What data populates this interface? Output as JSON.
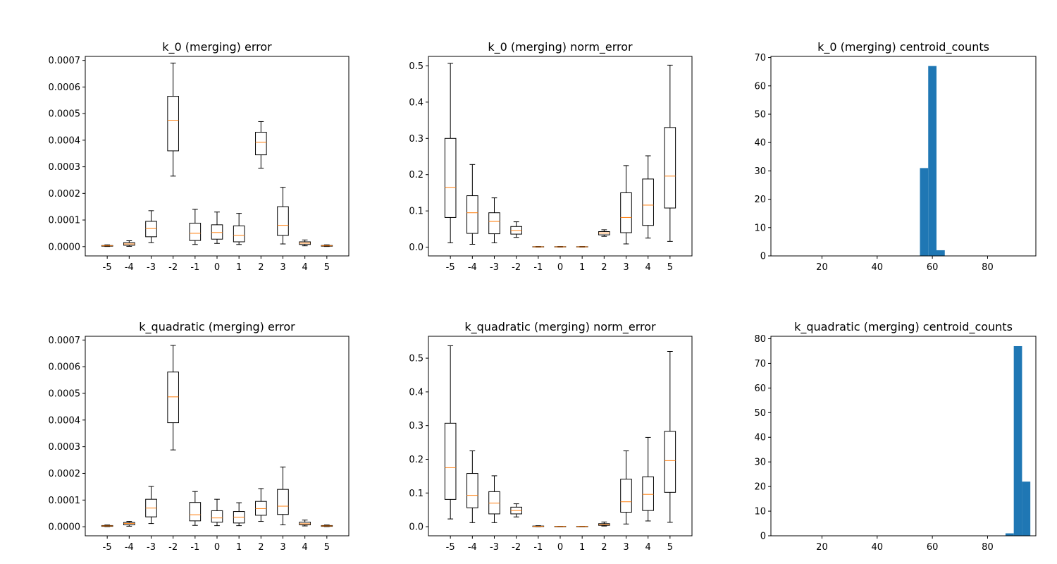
{
  "colors": {
    "box": "#000000",
    "median": "#ff7f0e",
    "bar": "#1f77b4",
    "background": "#ffffff"
  },
  "chart_data": [
    {
      "type": "box",
      "title": "k_0 (merging) error",
      "categories": [
        "-5",
        "-4",
        "-3",
        "-2",
        "-1",
        "0",
        "1",
        "2",
        "3",
        "4",
        "5"
      ],
      "ylim": [
        -3.5e-05,
        0.000715
      ],
      "yticks": [
        0,
        0.0001,
        0.0002,
        0.0003,
        0.0004,
        0.0005,
        0.0006,
        0.0007
      ],
      "ytick_labels": [
        "0.0000",
        "0.0001",
        "0.0002",
        "0.0003",
        "0.0004",
        "0.0005",
        "0.0006",
        "0.0007"
      ],
      "boxes": [
        {
          "whislo": 5e-07,
          "q1": 1.5e-06,
          "med": 3e-06,
          "q3": 4e-06,
          "whishi": 6.5e-06
        },
        {
          "whislo": 1e-06,
          "q1": 5e-06,
          "med": 1e-05,
          "q3": 1.5e-05,
          "whishi": 2.2e-05
        },
        {
          "whislo": 1.5e-05,
          "q1": 3.7e-05,
          "med": 6.8e-05,
          "q3": 9.5e-05,
          "whishi": 0.000135
        },
        {
          "whislo": 0.000265,
          "q1": 0.00036,
          "med": 0.000475,
          "q3": 0.000565,
          "whishi": 0.00069
        },
        {
          "whislo": 8e-06,
          "q1": 2.3e-05,
          "med": 5e-05,
          "q3": 8.8e-05,
          "whishi": 0.00014
        },
        {
          "whislo": 1.2e-05,
          "q1": 2.8e-05,
          "med": 5.3e-05,
          "q3": 8.2e-05,
          "whishi": 0.00013
        },
        {
          "whislo": 8e-06,
          "q1": 1.8e-05,
          "med": 4.2e-05,
          "q3": 7.8e-05,
          "whishi": 0.000125
        },
        {
          "whislo": 0.000295,
          "q1": 0.000345,
          "med": 0.000392,
          "q3": 0.00043,
          "whishi": 0.00047
        },
        {
          "whislo": 1e-05,
          "q1": 4.2e-05,
          "med": 8e-05,
          "q3": 0.00015,
          "whishi": 0.000223
        },
        {
          "whislo": 3e-06,
          "q1": 8e-06,
          "med": 1.3e-05,
          "q3": 1.8e-05,
          "whishi": 2.5e-05
        },
        {
          "whislo": 5e-07,
          "q1": 1.5e-06,
          "med": 3e-06,
          "q3": 4.2e-06,
          "whishi": 6.5e-06
        }
      ]
    },
    {
      "type": "box",
      "title": "k_0 (merging) norm_error",
      "categories": [
        "-5",
        "-4",
        "-3",
        "-2",
        "-1",
        "0",
        "1",
        "2",
        "3",
        "4",
        "5"
      ],
      "ylim": [
        -0.0241,
        0.5261
      ],
      "yticks": [
        0,
        0.1,
        0.2,
        0.3,
        0.4,
        0.5
      ],
      "ytick_labels": [
        "0.0",
        "0.1",
        "0.2",
        "0.3",
        "0.4",
        "0.5"
      ],
      "boxes": [
        {
          "whislo": 0.012,
          "q1": 0.082,
          "med": 0.165,
          "q3": 0.3,
          "whishi": 0.507
        },
        {
          "whislo": 0.008,
          "q1": 0.038,
          "med": 0.095,
          "q3": 0.142,
          "whishi": 0.228
        },
        {
          "whislo": 0.012,
          "q1": 0.037,
          "med": 0.071,
          "q3": 0.095,
          "whishi": 0.136
        },
        {
          "whislo": 0.027,
          "q1": 0.036,
          "med": 0.046,
          "q3": 0.057,
          "whishi": 0.07
        },
        {
          "whislo": 0.0,
          "q1": 0.0005,
          "med": 0.001,
          "q3": 0.0015,
          "whishi": 0.002
        },
        {
          "whislo": 0.0,
          "q1": 0.0005,
          "med": 0.001,
          "q3": 0.0015,
          "whishi": 0.002
        },
        {
          "whislo": 0.0,
          "q1": 0.0005,
          "med": 0.001,
          "q3": 0.0015,
          "whishi": 0.002
        },
        {
          "whislo": 0.03,
          "q1": 0.034,
          "med": 0.039,
          "q3": 0.043,
          "whishi": 0.048
        },
        {
          "whislo": 0.009,
          "q1": 0.04,
          "med": 0.082,
          "q3": 0.15,
          "whishi": 0.225
        },
        {
          "whislo": 0.025,
          "q1": 0.06,
          "med": 0.116,
          "q3": 0.188,
          "whishi": 0.252
        },
        {
          "whislo": 0.016,
          "q1": 0.108,
          "med": 0.196,
          "q3": 0.33,
          "whishi": 0.502
        }
      ]
    },
    {
      "type": "bar",
      "title": "k_0 (merging) centroid_counts",
      "xlim": [
        1.5,
        97.5
      ],
      "ylim": [
        0,
        70.4
      ],
      "xticks": [
        20,
        40,
        60,
        80
      ],
      "xtick_labels": [
        "20",
        "40",
        "60",
        "80"
      ],
      "yticks": [
        0,
        10,
        20,
        30,
        40,
        50,
        60,
        70
      ],
      "ytick_labels": [
        "0",
        "10",
        "20",
        "30",
        "40",
        "50",
        "60",
        "70"
      ],
      "bins": [
        {
          "x0": 55.5,
          "x1": 58.5,
          "count": 31
        },
        {
          "x0": 58.5,
          "x1": 61.5,
          "count": 67
        },
        {
          "x0": 61.5,
          "x1": 64.5,
          "count": 2
        }
      ]
    },
    {
      "type": "box",
      "title": "k_quadratic (merging) error",
      "categories": [
        "-5",
        "-4",
        "-3",
        "-2",
        "-1",
        "0",
        "1",
        "2",
        "3",
        "4",
        "5"
      ],
      "ylim": [
        -3.4e-05,
        0.000714
      ],
      "yticks": [
        0,
        0.0001,
        0.0002,
        0.0003,
        0.0004,
        0.0005,
        0.0006,
        0.0007
      ],
      "ytick_labels": [
        "0.0000",
        "0.0001",
        "0.0002",
        "0.0003",
        "0.0004",
        "0.0005",
        "0.0006",
        "0.0007"
      ],
      "boxes": [
        {
          "whislo": 5e-07,
          "q1": 1.5e-06,
          "med": 3e-06,
          "q3": 4.5e-06,
          "whishi": 6.5e-06
        },
        {
          "whislo": 2e-06,
          "q1": 7e-06,
          "med": 1.2e-05,
          "q3": 1.6e-05,
          "whishi": 2e-05
        },
        {
          "whislo": 1.2e-05,
          "q1": 3.7e-05,
          "med": 7e-05,
          "q3": 0.000103,
          "whishi": 0.000151
        },
        {
          "whislo": 0.000288,
          "q1": 0.00039,
          "med": 0.000487,
          "q3": 0.00058,
          "whishi": 0.00068
        },
        {
          "whislo": 5e-06,
          "q1": 2.2e-05,
          "med": 4.5e-05,
          "q3": 9.1e-05,
          "whishi": 0.000132
        },
        {
          "whislo": 4e-06,
          "q1": 1.7e-05,
          "med": 3.3e-05,
          "q3": 6e-05,
          "whishi": 0.000103
        },
        {
          "whislo": 4e-06,
          "q1": 1.4e-05,
          "med": 3.6e-05,
          "q3": 5.7e-05,
          "whishi": 9e-05
        },
        {
          "whislo": 2e-05,
          "q1": 4.3e-05,
          "med": 6.8e-05,
          "q3": 9.5e-05,
          "whishi": 0.000143
        },
        {
          "whislo": 7e-06,
          "q1": 4.6e-05,
          "med": 7.7e-05,
          "q3": 0.00014,
          "whishi": 0.000224
        },
        {
          "whislo": 3e-06,
          "q1": 7e-06,
          "med": 1.1e-05,
          "q3": 1.7e-05,
          "whishi": 2.5e-05
        },
        {
          "whislo": 5e-07,
          "q1": 1.5e-06,
          "med": 3e-06,
          "q3": 4.5e-06,
          "whishi": 6.5e-06
        }
      ]
    },
    {
      "type": "box",
      "title": "k_quadratic (merging) norm_error",
      "categories": [
        "-5",
        "-4",
        "-3",
        "-2",
        "-1",
        "0",
        "1",
        "2",
        "3",
        "4",
        "5"
      ],
      "ylim": [
        -0.027,
        0.565
      ],
      "yticks": [
        0,
        0.1,
        0.2,
        0.3,
        0.4,
        0.5
      ],
      "ytick_labels": [
        "0.0",
        "0.1",
        "0.2",
        "0.3",
        "0.4",
        "0.5"
      ],
      "boxes": [
        {
          "whislo": 0.023,
          "q1": 0.081,
          "med": 0.175,
          "q3": 0.307,
          "whishi": 0.537
        },
        {
          "whislo": 0.012,
          "q1": 0.056,
          "med": 0.093,
          "q3": 0.158,
          "whishi": 0.225
        },
        {
          "whislo": 0.012,
          "q1": 0.038,
          "med": 0.07,
          "q3": 0.104,
          "whishi": 0.151
        },
        {
          "whislo": 0.029,
          "q1": 0.038,
          "med": 0.048,
          "q3": 0.058,
          "whishi": 0.068
        },
        {
          "whislo": 0.0,
          "q1": 0.0005,
          "med": 0.001,
          "q3": 0.002,
          "whishi": 0.003
        },
        {
          "whislo": 0.0,
          "q1": 0.0003,
          "med": 0.0006,
          "q3": 0.0009,
          "whishi": 0.0012
        },
        {
          "whislo": 0.0,
          "q1": 0.0003,
          "med": 0.0006,
          "q3": 0.0009,
          "whishi": 0.0012
        },
        {
          "whislo": 0.002,
          "q1": 0.004,
          "med": 0.006,
          "q3": 0.009,
          "whishi": 0.014
        },
        {
          "whislo": 0.008,
          "q1": 0.043,
          "med": 0.074,
          "q3": 0.141,
          "whishi": 0.225
        },
        {
          "whislo": 0.017,
          "q1": 0.048,
          "med": 0.096,
          "q3": 0.148,
          "whishi": 0.265
        },
        {
          "whislo": 0.013,
          "q1": 0.102,
          "med": 0.196,
          "q3": 0.283,
          "whishi": 0.52
        }
      ]
    },
    {
      "type": "bar",
      "title": "k_quadratic (merging) centroid_counts",
      "xlim": [
        1.5,
        97.5
      ],
      "ylim": [
        0,
        81.0
      ],
      "xticks": [
        20,
        40,
        60,
        80
      ],
      "xtick_labels": [
        "20",
        "40",
        "60",
        "80"
      ],
      "yticks": [
        0,
        10,
        20,
        30,
        40,
        50,
        60,
        70,
        80
      ],
      "ytick_labels": [
        "0",
        "10",
        "20",
        "30",
        "40",
        "50",
        "60",
        "70",
        "80"
      ],
      "bins": [
        {
          "x0": 86.5,
          "x1": 89.5,
          "count": 1
        },
        {
          "x0": 89.5,
          "x1": 92.5,
          "count": 77
        },
        {
          "x0": 92.5,
          "x1": 95.5,
          "count": 22
        }
      ]
    }
  ]
}
